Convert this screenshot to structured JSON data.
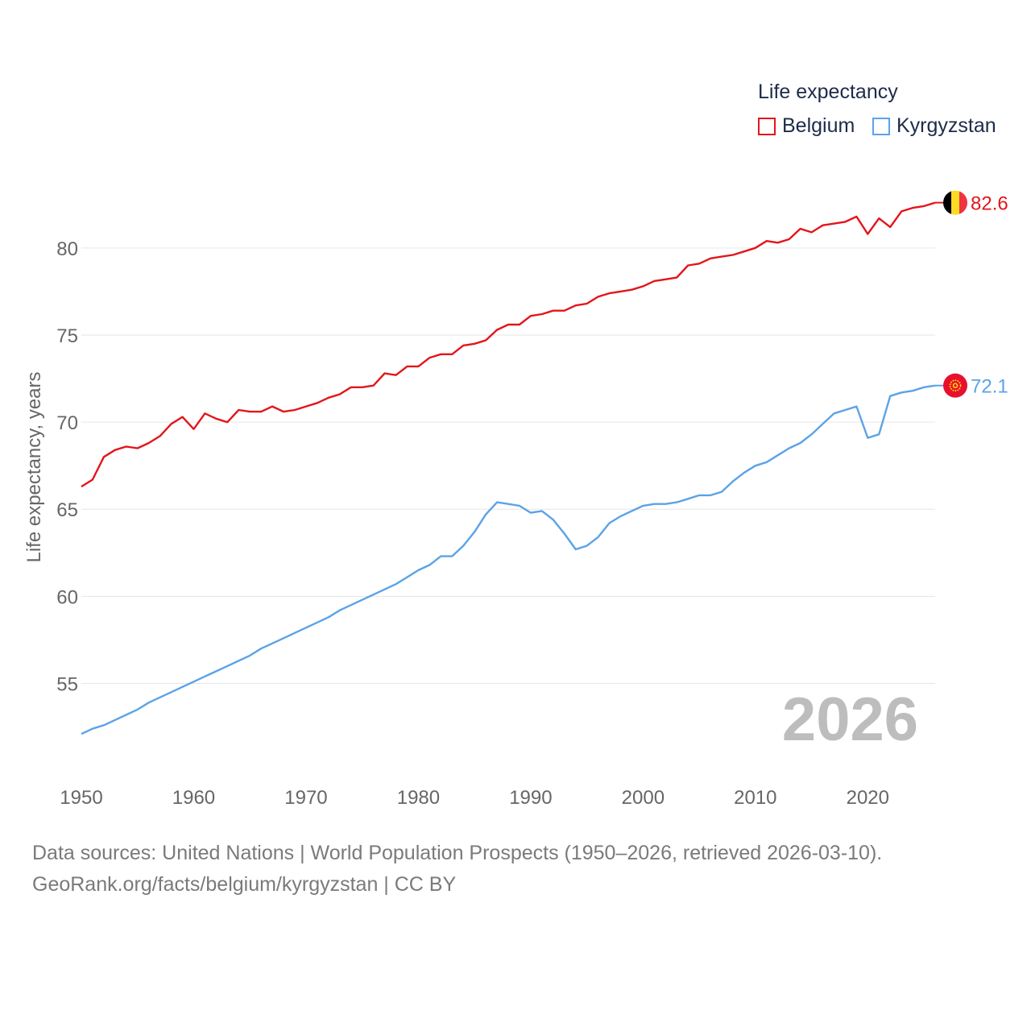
{
  "chart_data": {
    "type": "line",
    "ylabel": "Life expectancy, years",
    "xlabel": "",
    "xlim": [
      1950,
      2026
    ],
    "ylim": [
      51,
      84.2
    ],
    "yticks": [
      55,
      60,
      65,
      70,
      75,
      80
    ],
    "xticks": [
      1950,
      1960,
      1970,
      1980,
      1990,
      2000,
      2010,
      2020
    ],
    "grid": true,
    "year_label": "2026",
    "legend": {
      "title": "Life expectancy",
      "position": "top-right"
    },
    "series": [
      {
        "name": "Belgium",
        "color": "#e3151b",
        "end_label": "82.6",
        "flag_icon": "belgium-flag-icon",
        "x": [
          1950,
          1951,
          1952,
          1953,
          1954,
          1955,
          1956,
          1957,
          1958,
          1959,
          1960,
          1961,
          1962,
          1963,
          1964,
          1965,
          1966,
          1967,
          1968,
          1969,
          1970,
          1971,
          1972,
          1973,
          1974,
          1975,
          1976,
          1977,
          1978,
          1979,
          1980,
          1981,
          1982,
          1983,
          1984,
          1985,
          1986,
          1987,
          1988,
          1989,
          1990,
          1991,
          1992,
          1993,
          1994,
          1995,
          1996,
          1997,
          1998,
          1999,
          2000,
          2001,
          2002,
          2003,
          2004,
          2005,
          2006,
          2007,
          2008,
          2009,
          2010,
          2011,
          2012,
          2013,
          2014,
          2015,
          2016,
          2017,
          2018,
          2019,
          2020,
          2021,
          2022,
          2023,
          2024,
          2025,
          2026
        ],
        "values": [
          66.3,
          66.7,
          68.0,
          68.4,
          68.6,
          68.5,
          68.8,
          69.2,
          69.9,
          70.3,
          69.6,
          70.5,
          70.2,
          70.0,
          70.7,
          70.6,
          70.6,
          70.9,
          70.6,
          70.7,
          70.9,
          71.1,
          71.4,
          71.6,
          72.0,
          72.0,
          72.1,
          72.8,
          72.7,
          73.2,
          73.2,
          73.7,
          73.9,
          73.9,
          74.4,
          74.5,
          74.7,
          75.3,
          75.6,
          75.6,
          76.1,
          76.2,
          76.4,
          76.4,
          76.7,
          76.8,
          77.2,
          77.4,
          77.5,
          77.6,
          77.8,
          78.1,
          78.2,
          78.3,
          79.0,
          79.1,
          79.4,
          79.5,
          79.6,
          79.8,
          80.0,
          80.4,
          80.3,
          80.5,
          81.1,
          80.9,
          81.3,
          81.4,
          81.5,
          81.8,
          80.8,
          81.7,
          81.2,
          82.1,
          82.3,
          82.4,
          82.6
        ]
      },
      {
        "name": "Kyrgyzstan",
        "color": "#5ba3e6",
        "end_label": "72.1",
        "flag_icon": "kyrgyzstan-flag-icon",
        "x": [
          1950,
          1951,
          1952,
          1953,
          1954,
          1955,
          1956,
          1957,
          1958,
          1959,
          1960,
          1961,
          1962,
          1963,
          1964,
          1965,
          1966,
          1967,
          1968,
          1969,
          1970,
          1971,
          1972,
          1973,
          1974,
          1975,
          1976,
          1977,
          1978,
          1979,
          1980,
          1981,
          1982,
          1983,
          1984,
          1985,
          1986,
          1987,
          1988,
          1989,
          1990,
          1991,
          1992,
          1993,
          1994,
          1995,
          1996,
          1997,
          1998,
          1999,
          2000,
          2001,
          2002,
          2003,
          2004,
          2005,
          2006,
          2007,
          2008,
          2009,
          2010,
          2011,
          2012,
          2013,
          2014,
          2015,
          2016,
          2017,
          2018,
          2019,
          2020,
          2021,
          2022,
          2023,
          2024,
          2025,
          2026
        ],
        "values": [
          52.1,
          52.4,
          52.6,
          52.9,
          53.2,
          53.5,
          53.9,
          54.2,
          54.5,
          54.8,
          55.1,
          55.4,
          55.7,
          56.0,
          56.3,
          56.6,
          57.0,
          57.3,
          57.6,
          57.9,
          58.2,
          58.5,
          58.8,
          59.2,
          59.5,
          59.8,
          60.1,
          60.4,
          60.7,
          61.1,
          61.5,
          61.8,
          62.3,
          62.3,
          62.9,
          63.7,
          64.7,
          65.4,
          65.3,
          65.2,
          64.8,
          64.9,
          64.4,
          63.6,
          62.7,
          62.9,
          63.4,
          64.2,
          64.6,
          64.9,
          65.2,
          65.3,
          65.3,
          65.4,
          65.6,
          65.8,
          65.8,
          66.0,
          66.6,
          67.1,
          67.5,
          67.7,
          68.1,
          68.5,
          68.8,
          69.3,
          69.9,
          70.5,
          70.7,
          70.9,
          69.1,
          69.3,
          71.5,
          71.7,
          71.8,
          72.0,
          72.1
        ]
      }
    ],
    "source_line1": "Data sources: United Nations | World Population Prospects (1950–2026, retrieved 2026-03-10).",
    "source_line2": "GeoRank.org/facts/belgium/kyrgyzstan | CC BY"
  }
}
